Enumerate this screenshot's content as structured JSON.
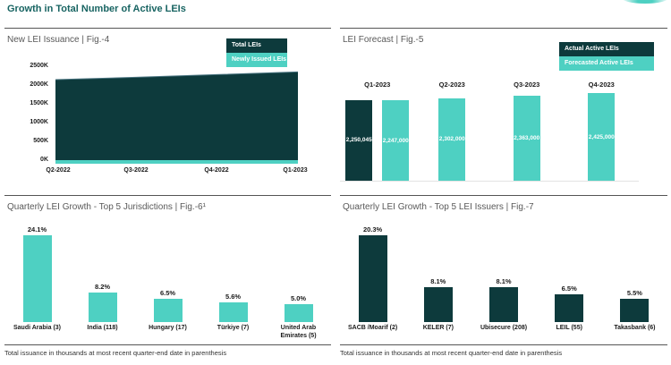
{
  "page": {
    "title": "Growth in Total Number of Active LEIs",
    "footnote_left": "Total issuance in thousands at most recent quarter-end date in parenthesis",
    "footnote_right": "Total issuance in thousands at most recent quarter-end date in parenthesis"
  },
  "colors": {
    "dark_teal": "#0d3a3c",
    "light_teal": "#4ed0c2",
    "header_teal": "#186462",
    "area_edge": "#4a7480"
  },
  "fig4": {
    "title": "New LEI Issuance | Fig.-4",
    "legend": [
      {
        "label": "Total LEIs",
        "color": "#0d3a3c"
      },
      {
        "label": "Newly Issued LEIs",
        "color": "#4ed0c2"
      }
    ],
    "chart_data": {
      "type": "area",
      "x": [
        "Q2-2022",
        "Q3-2022",
        "Q4-2022",
        "Q1-2023"
      ],
      "series": [
        {
          "name": "Total LEIs",
          "values": [
            2150,
            2210,
            2280,
            2350
          ]
        },
        {
          "name": "Newly Issued LEIs",
          "values": [
            30,
            30,
            35,
            40
          ]
        }
      ],
      "unit": "thousands",
      "ylim": [
        0,
        2500
      ],
      "yticks": [
        "2500K",
        "2000K",
        "1500K",
        "1000K",
        "500K",
        "0K"
      ],
      "grid": false,
      "legend_position": "top-right"
    }
  },
  "fig5": {
    "title": "LEI Forecast | Fig.-5",
    "legend": [
      {
        "label": "Actual Active LEIs",
        "color": "#0d3a3c"
      },
      {
        "label": "Forecasted Active LEIs",
        "color": "#4ed0c2"
      }
    ],
    "chart_data": {
      "type": "bar",
      "categories": [
        "Q1-2023",
        "Q2-2023",
        "Q3-2023",
        "Q4-2023"
      ],
      "groups": [
        {
          "label": "Q1-2023",
          "bars": [
            {
              "series": "Actual Active LEIs",
              "value": 2250045,
              "label": "2,250,045",
              "color": "dark"
            },
            {
              "series": "Forecasted Active LEIs",
              "value": 2247000,
              "label": "2,247,000",
              "color": "light"
            }
          ]
        },
        {
          "label": "Q2-2023",
          "bars": [
            {
              "series": "Forecasted Active LEIs",
              "value": 2302000,
              "label": "2,302,000",
              "color": "light"
            }
          ]
        },
        {
          "label": "Q3-2023",
          "bars": [
            {
              "series": "Forecasted Active LEIs",
              "value": 2363000,
              "label": "2,363,000",
              "color": "light"
            }
          ]
        },
        {
          "label": "Q4-2023",
          "bars": [
            {
              "series": "Forecasted Active LEIs",
              "value": 2425000,
              "label": "2,425,000",
              "color": "light"
            }
          ]
        }
      ],
      "grid": false,
      "legend_position": "top-right"
    }
  },
  "fig6": {
    "title": "Quarterly LEI Growth - Top 5 Jurisdictions | Fig.-6¹",
    "chart_data": {
      "type": "bar",
      "categories": [
        "Saudi Arabia (3)",
        "India (118)",
        "Hungary (17)",
        "Türkiye (7)",
        "United Arab Emirates (5)"
      ],
      "values": [
        24.1,
        8.2,
        6.5,
        5.6,
        5.0
      ],
      "value_labels": [
        "24.1%",
        "8.2%",
        "6.5%",
        "5.6%",
        "5.0%"
      ],
      "grid": false
    }
  },
  "fig7": {
    "title": "Quarterly LEI Growth - Top 5 LEI Issuers | Fig.-7",
    "chart_data": {
      "type": "bar",
      "categories": [
        "SACB /Moarif (2)",
        "KELER (7)",
        "Ubisecure (208)",
        "LEIL (55)",
        "Takasbank (6)"
      ],
      "values": [
        20.3,
        8.1,
        8.1,
        6.5,
        5.5
      ],
      "value_labels": [
        "20.3%",
        "8.1%",
        "8.1%",
        "6.5%",
        "5.5%"
      ],
      "grid": false
    }
  }
}
